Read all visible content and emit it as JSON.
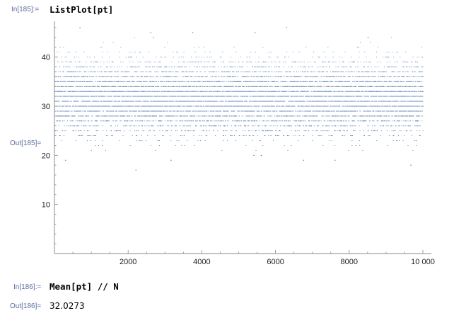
{
  "cells": [
    {
      "in_label": "In[185]:=",
      "code": "ListPlot[pt]",
      "out_label": "Out[185]="
    },
    {
      "in_label": "In[186]:=",
      "code": "Mean[pt] // N",
      "out_label": "Out[186]=",
      "output": "32.0273"
    }
  ],
  "chart_data": {
    "type": "scatter",
    "title": "",
    "xlabel": "",
    "ylabel": "",
    "xlim": [
      0,
      10000
    ],
    "ylim": [
      0,
      47
    ],
    "x_ticks": [
      2000,
      4000,
      6000,
      8000,
      10000
    ],
    "x_tick_labels": [
      "2000",
      "4000",
      "6000",
      "8000",
      "10 000"
    ],
    "y_ticks": [
      10,
      20,
      30,
      40
    ],
    "y_tick_labels": [
      "10",
      "20",
      "30",
      "40"
    ],
    "n_points": 10000,
    "mean": 32.0273,
    "dense_y_band": [
      24,
      40
    ],
    "sparse_outliers": [
      {
        "x": 680,
        "y": 46
      },
      {
        "x": 2600,
        "y": 45
      },
      {
        "x": 2680,
        "y": 44
      },
      {
        "x": 3740,
        "y": 45
      },
      {
        "x": 5430,
        "y": 45
      },
      {
        "x": 6290,
        "y": 46
      },
      {
        "x": 8500,
        "y": 44
      },
      {
        "x": 2200,
        "y": 17
      },
      {
        "x": 9660,
        "y": 18
      },
      {
        "x": 290,
        "y": 19
      },
      {
        "x": 3150,
        "y": 19
      },
      {
        "x": 6750,
        "y": 19
      },
      {
        "x": 5400,
        "y": 20
      },
      {
        "x": 5600,
        "y": 20
      },
      {
        "x": 7600,
        "y": 19
      }
    ],
    "grid": false,
    "point_color": "#5e81b5"
  }
}
